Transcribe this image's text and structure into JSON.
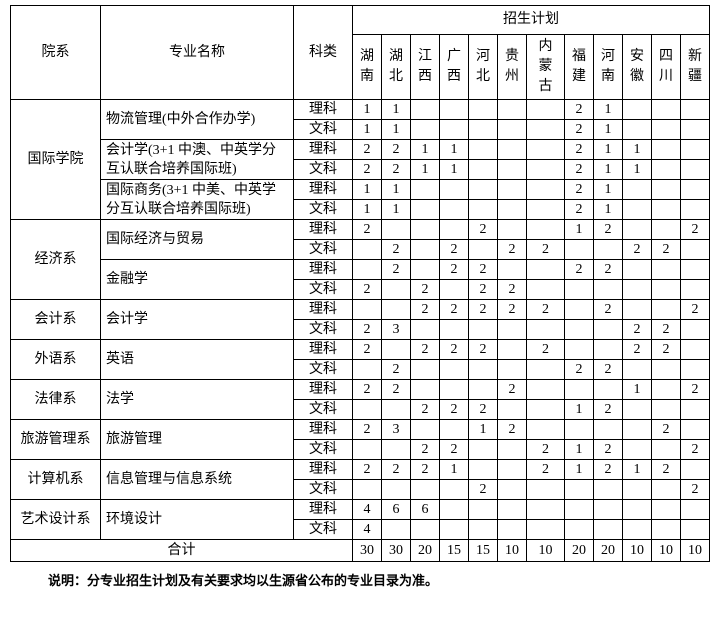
{
  "header": {
    "department": "院系",
    "major": "专业名称",
    "subject": "科类",
    "plan_title": "招生计划",
    "provinces": [
      "湖南",
      "湖北",
      "江西",
      "广西",
      "河北",
      "贵州",
      "内蒙古",
      "福建",
      "河南",
      "安徽",
      "四川",
      "新疆"
    ]
  },
  "departments": [
    {
      "name": "国际学院",
      "majors": [
        {
          "name": "物流管理(中外合作办学)",
          "rows": [
            {
              "subject": "理科",
              "values": [
                "1",
                "1",
                "",
                "",
                "",
                "",
                "",
                "2",
                "1",
                "",
                "",
                ""
              ]
            },
            {
              "subject": "文科",
              "values": [
                "1",
                "1",
                "",
                "",
                "",
                "",
                "",
                "2",
                "1",
                "",
                "",
                ""
              ]
            }
          ]
        },
        {
          "name": "会计学(3+1 中澳、中英学分互认联合培养国际班)",
          "rows": [
            {
              "subject": "理科",
              "values": [
                "2",
                "2",
                "1",
                "1",
                "",
                "",
                "",
                "2",
                "1",
                "1",
                "",
                ""
              ]
            },
            {
              "subject": "文科",
              "values": [
                "2",
                "2",
                "1",
                "1",
                "",
                "",
                "",
                "2",
                "1",
                "1",
                "",
                ""
              ]
            }
          ]
        },
        {
          "name": "国际商务(3+1 中美、中英学分互认联合培养国际班)",
          "rows": [
            {
              "subject": "理科",
              "values": [
                "1",
                "1",
                "",
                "",
                "",
                "",
                "",
                "2",
                "1",
                "",
                "",
                ""
              ]
            },
            {
              "subject": "文科",
              "values": [
                "1",
                "1",
                "",
                "",
                "",
                "",
                "",
                "2",
                "1",
                "",
                "",
                ""
              ]
            }
          ]
        }
      ]
    },
    {
      "name": "经济系",
      "majors": [
        {
          "name": "国际经济与贸易",
          "rows": [
            {
              "subject": "理科",
              "values": [
                "2",
                "",
                "",
                "",
                "2",
                "",
                "",
                "1",
                "2",
                "",
                "",
                "2"
              ]
            },
            {
              "subject": "文科",
              "values": [
                "",
                "2",
                "",
                "2",
                "",
                "2",
                "2",
                "",
                "",
                "2",
                "2",
                ""
              ]
            }
          ]
        },
        {
          "name": "金融学",
          "rows": [
            {
              "subject": "理科",
              "values": [
                "",
                "2",
                "",
                "2",
                "2",
                "",
                "",
                "2",
                "2",
                "",
                "",
                ""
              ]
            },
            {
              "subject": "文科",
              "values": [
                "2",
                "",
                "2",
                "",
                "2",
                "2",
                "",
                "",
                "",
                "",
                "",
                ""
              ]
            }
          ]
        }
      ]
    },
    {
      "name": "会计系",
      "majors": [
        {
          "name": "会计学",
          "rows": [
            {
              "subject": "理科",
              "values": [
                "",
                "",
                "2",
                "2",
                "2",
                "2",
                "2",
                "",
                "2",
                "",
                "",
                "2"
              ]
            },
            {
              "subject": "文科",
              "values": [
                "2",
                "3",
                "",
                "",
                "",
                "",
                "",
                "",
                "",
                "2",
                "2",
                ""
              ]
            }
          ]
        }
      ]
    },
    {
      "name": "外语系",
      "majors": [
        {
          "name": "英语",
          "rows": [
            {
              "subject": "理科",
              "values": [
                "2",
                "",
                "2",
                "2",
                "2",
                "",
                "2",
                "",
                "",
                "2",
                "2",
                ""
              ]
            },
            {
              "subject": "文科",
              "values": [
                "",
                "2",
                "",
                "",
                "",
                "",
                "",
                "2",
                "2",
                "",
                "",
                ""
              ]
            }
          ]
        }
      ]
    },
    {
      "name": "法律系",
      "majors": [
        {
          "name": "法学",
          "rows": [
            {
              "subject": "理科",
              "values": [
                "2",
                "2",
                "",
                "",
                "",
                "2",
                "",
                "",
                "",
                "1",
                "",
                "2"
              ]
            },
            {
              "subject": "文科",
              "values": [
                "",
                "",
                "2",
                "2",
                "2",
                "",
                "",
                "1",
                "2",
                "",
                "",
                ""
              ]
            }
          ]
        }
      ]
    },
    {
      "name": "旅游管理系",
      "majors": [
        {
          "name": "旅游管理",
          "rows": [
            {
              "subject": "理科",
              "values": [
                "2",
                "3",
                "",
                "",
                "1",
                "2",
                "",
                "",
                "",
                "",
                "2",
                ""
              ]
            },
            {
              "subject": "文科",
              "values": [
                "",
                "",
                "2",
                "2",
                "",
                "",
                "2",
                "1",
                "2",
                "",
                "",
                "2"
              ]
            }
          ]
        }
      ]
    },
    {
      "name": "计算机系",
      "majors": [
        {
          "name": "信息管理与信息系统",
          "rows": [
            {
              "subject": "理科",
              "values": [
                "2",
                "2",
                "2",
                "1",
                "",
                "",
                "2",
                "1",
                "2",
                "1",
                "2",
                ""
              ]
            },
            {
              "subject": "文科",
              "values": [
                "",
                "",
                "",
                "",
                "2",
                "",
                "",
                "",
                "",
                "",
                "",
                "2"
              ]
            }
          ]
        }
      ]
    },
    {
      "name": "艺术设计系",
      "majors": [
        {
          "name": "环境设计",
          "rows": [
            {
              "subject": "理科",
              "values": [
                "4",
                "6",
                "6",
                "",
                "",
                "",
                "",
                "",
                "",
                "",
                "",
                ""
              ]
            },
            {
              "subject": "文科",
              "values": [
                "4",
                "",
                "",
                "",
                "",
                "",
                "",
                "",
                "",
                "",
                "",
                ""
              ]
            }
          ]
        }
      ]
    }
  ],
  "total": {
    "label": "合计",
    "values": [
      "30",
      "30",
      "20",
      "15",
      "15",
      "10",
      "10",
      "20",
      "20",
      "10",
      "10",
      "10"
    ]
  },
  "note": "说明：分专业招生计划及有关要求均以生源省公布的专业目录为准。"
}
